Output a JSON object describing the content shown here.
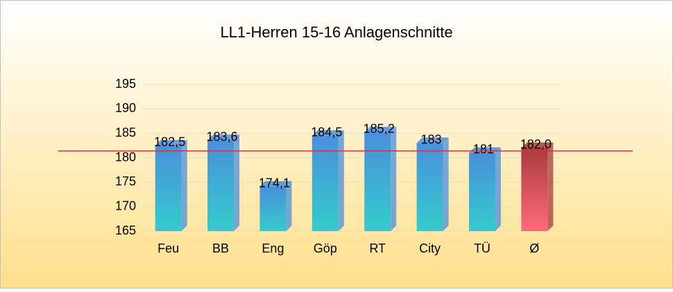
{
  "chart_data": {
    "type": "bar",
    "title": "LL1-Herren 15-16  Anlagenschnitte",
    "categories": [
      "Feu",
      "BB",
      "Eng",
      "Göp",
      "RT",
      "City",
      "TÜ",
      "Ø"
    ],
    "values": [
      182.5,
      183.6,
      174.1,
      184.5,
      185.2,
      183,
      181,
      182.0
    ],
    "value_labels": [
      "182,5",
      "183,6",
      "174,1",
      "184,5",
      "185,2",
      "183",
      "181",
      "182,0"
    ],
    "colors": [
      "#4a8fdc",
      "#4a8fdc",
      "#4a8fdc",
      "#4a8fdc",
      "#4a8fdc",
      "#4a8fdc",
      "#4a8fdc",
      "#a83a3e"
    ],
    "bottom_colors": [
      "#33cccc",
      "#33cccc",
      "#33cccc",
      "#33cccc",
      "#33cccc",
      "#33cccc",
      "#33cccc",
      "#ff6b7a"
    ],
    "ylim": [
      165,
      195
    ],
    "yticks": [
      165,
      170,
      175,
      180,
      185,
      190,
      195
    ],
    "grid": true,
    "reference_line": 181.4,
    "reference_color": "#e03030"
  }
}
